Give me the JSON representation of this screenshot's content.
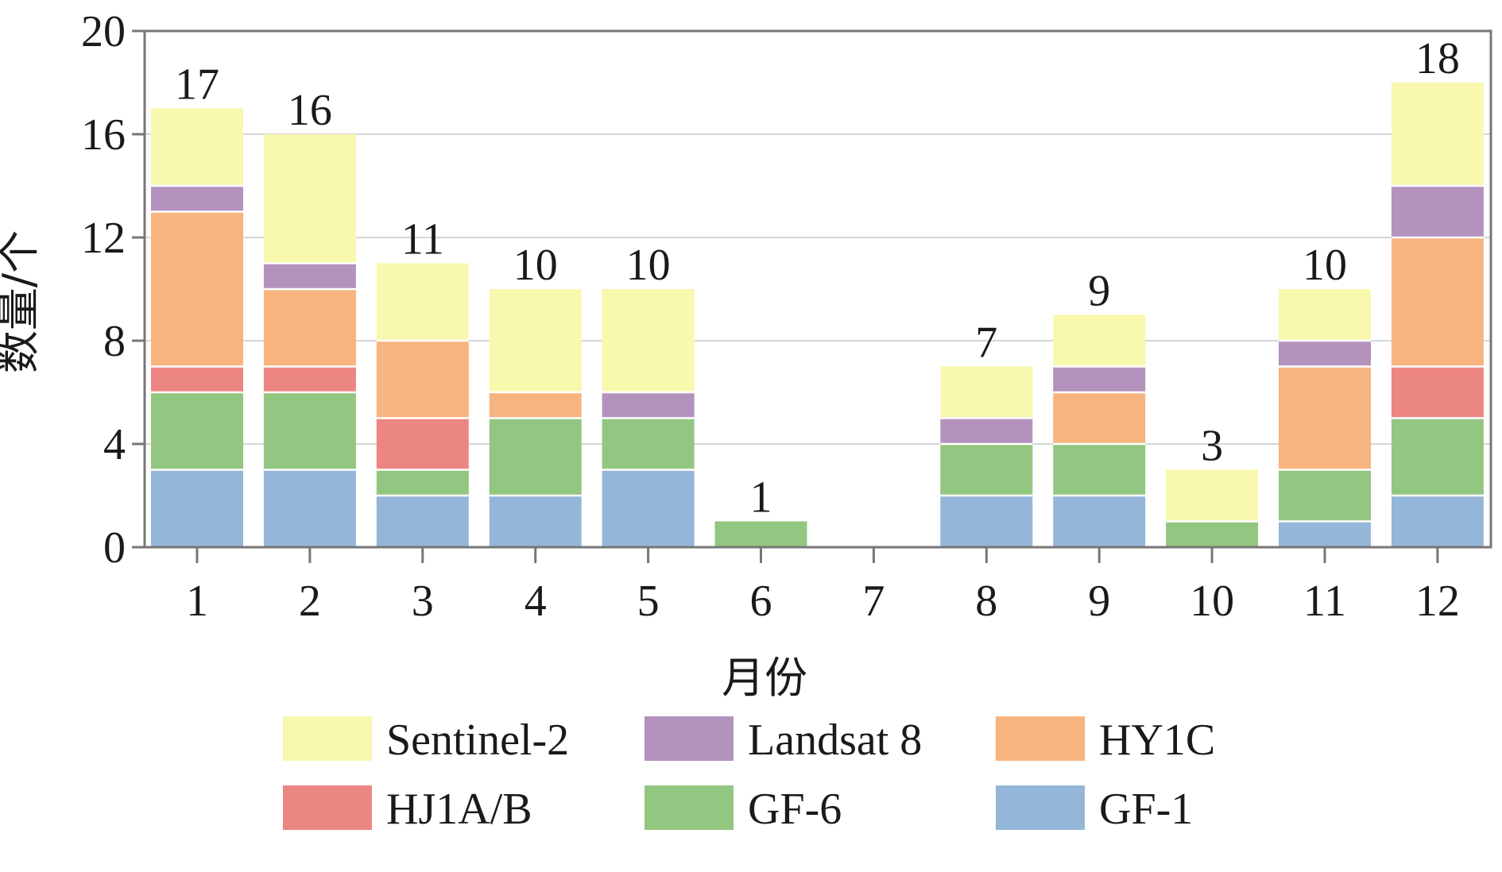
{
  "chart_data": {
    "type": "bar",
    "stacked": true,
    "title": "",
    "xlabel": "月份",
    "ylabel": "数量/个",
    "ylim": [
      0,
      20
    ],
    "yticks": [
      0,
      4,
      8,
      12,
      16,
      20
    ],
    "grid": "horizontal",
    "legend_position": "bottom",
    "categories": [
      "1",
      "2",
      "3",
      "4",
      "5",
      "6",
      "7",
      "8",
      "9",
      "10",
      "11",
      "12"
    ],
    "series": [
      {
        "name": "GF-1",
        "color": "#94B6D9",
        "values": [
          3,
          3,
          2,
          2,
          3,
          0,
          0,
          2,
          2,
          0,
          1,
          2
        ]
      },
      {
        "name": "GF-6",
        "color": "#93C680",
        "values": [
          3,
          3,
          1,
          3,
          2,
          1,
          0,
          2,
          2,
          1,
          2,
          3
        ]
      },
      {
        "name": "HJ1A/B",
        "color": "#EC8682",
        "values": [
          1,
          1,
          2,
          0,
          0,
          0,
          0,
          0,
          0,
          0,
          0,
          2
        ]
      },
      {
        "name": "HY1C",
        "color": "#F7B47F",
        "values": [
          6,
          3,
          3,
          1,
          0,
          0,
          0,
          0,
          2,
          0,
          4,
          5
        ]
      },
      {
        "name": "Landsat 8",
        "color": "#B393BE",
        "values": [
          1,
          1,
          0,
          0,
          1,
          0,
          0,
          1,
          1,
          0,
          1,
          2
        ]
      },
      {
        "name": "Sentinel-2",
        "color": "#F8F8AE",
        "values": [
          3,
          5,
          3,
          4,
          4,
          0,
          0,
          2,
          2,
          2,
          2,
          4
        ]
      }
    ],
    "totals": [
      17,
      16,
      11,
      10,
      10,
      1,
      0,
      7,
      9,
      3,
      10,
      18
    ],
    "total_labels": [
      "17",
      "16",
      "11",
      "10",
      "10",
      "1",
      "",
      "7",
      "9",
      "3",
      "10",
      "18"
    ],
    "legend_order": [
      "Sentinel-2",
      "Landsat 8",
      "HY1C",
      "HJ1A/B",
      "GF-6",
      "GF-1"
    ]
  }
}
